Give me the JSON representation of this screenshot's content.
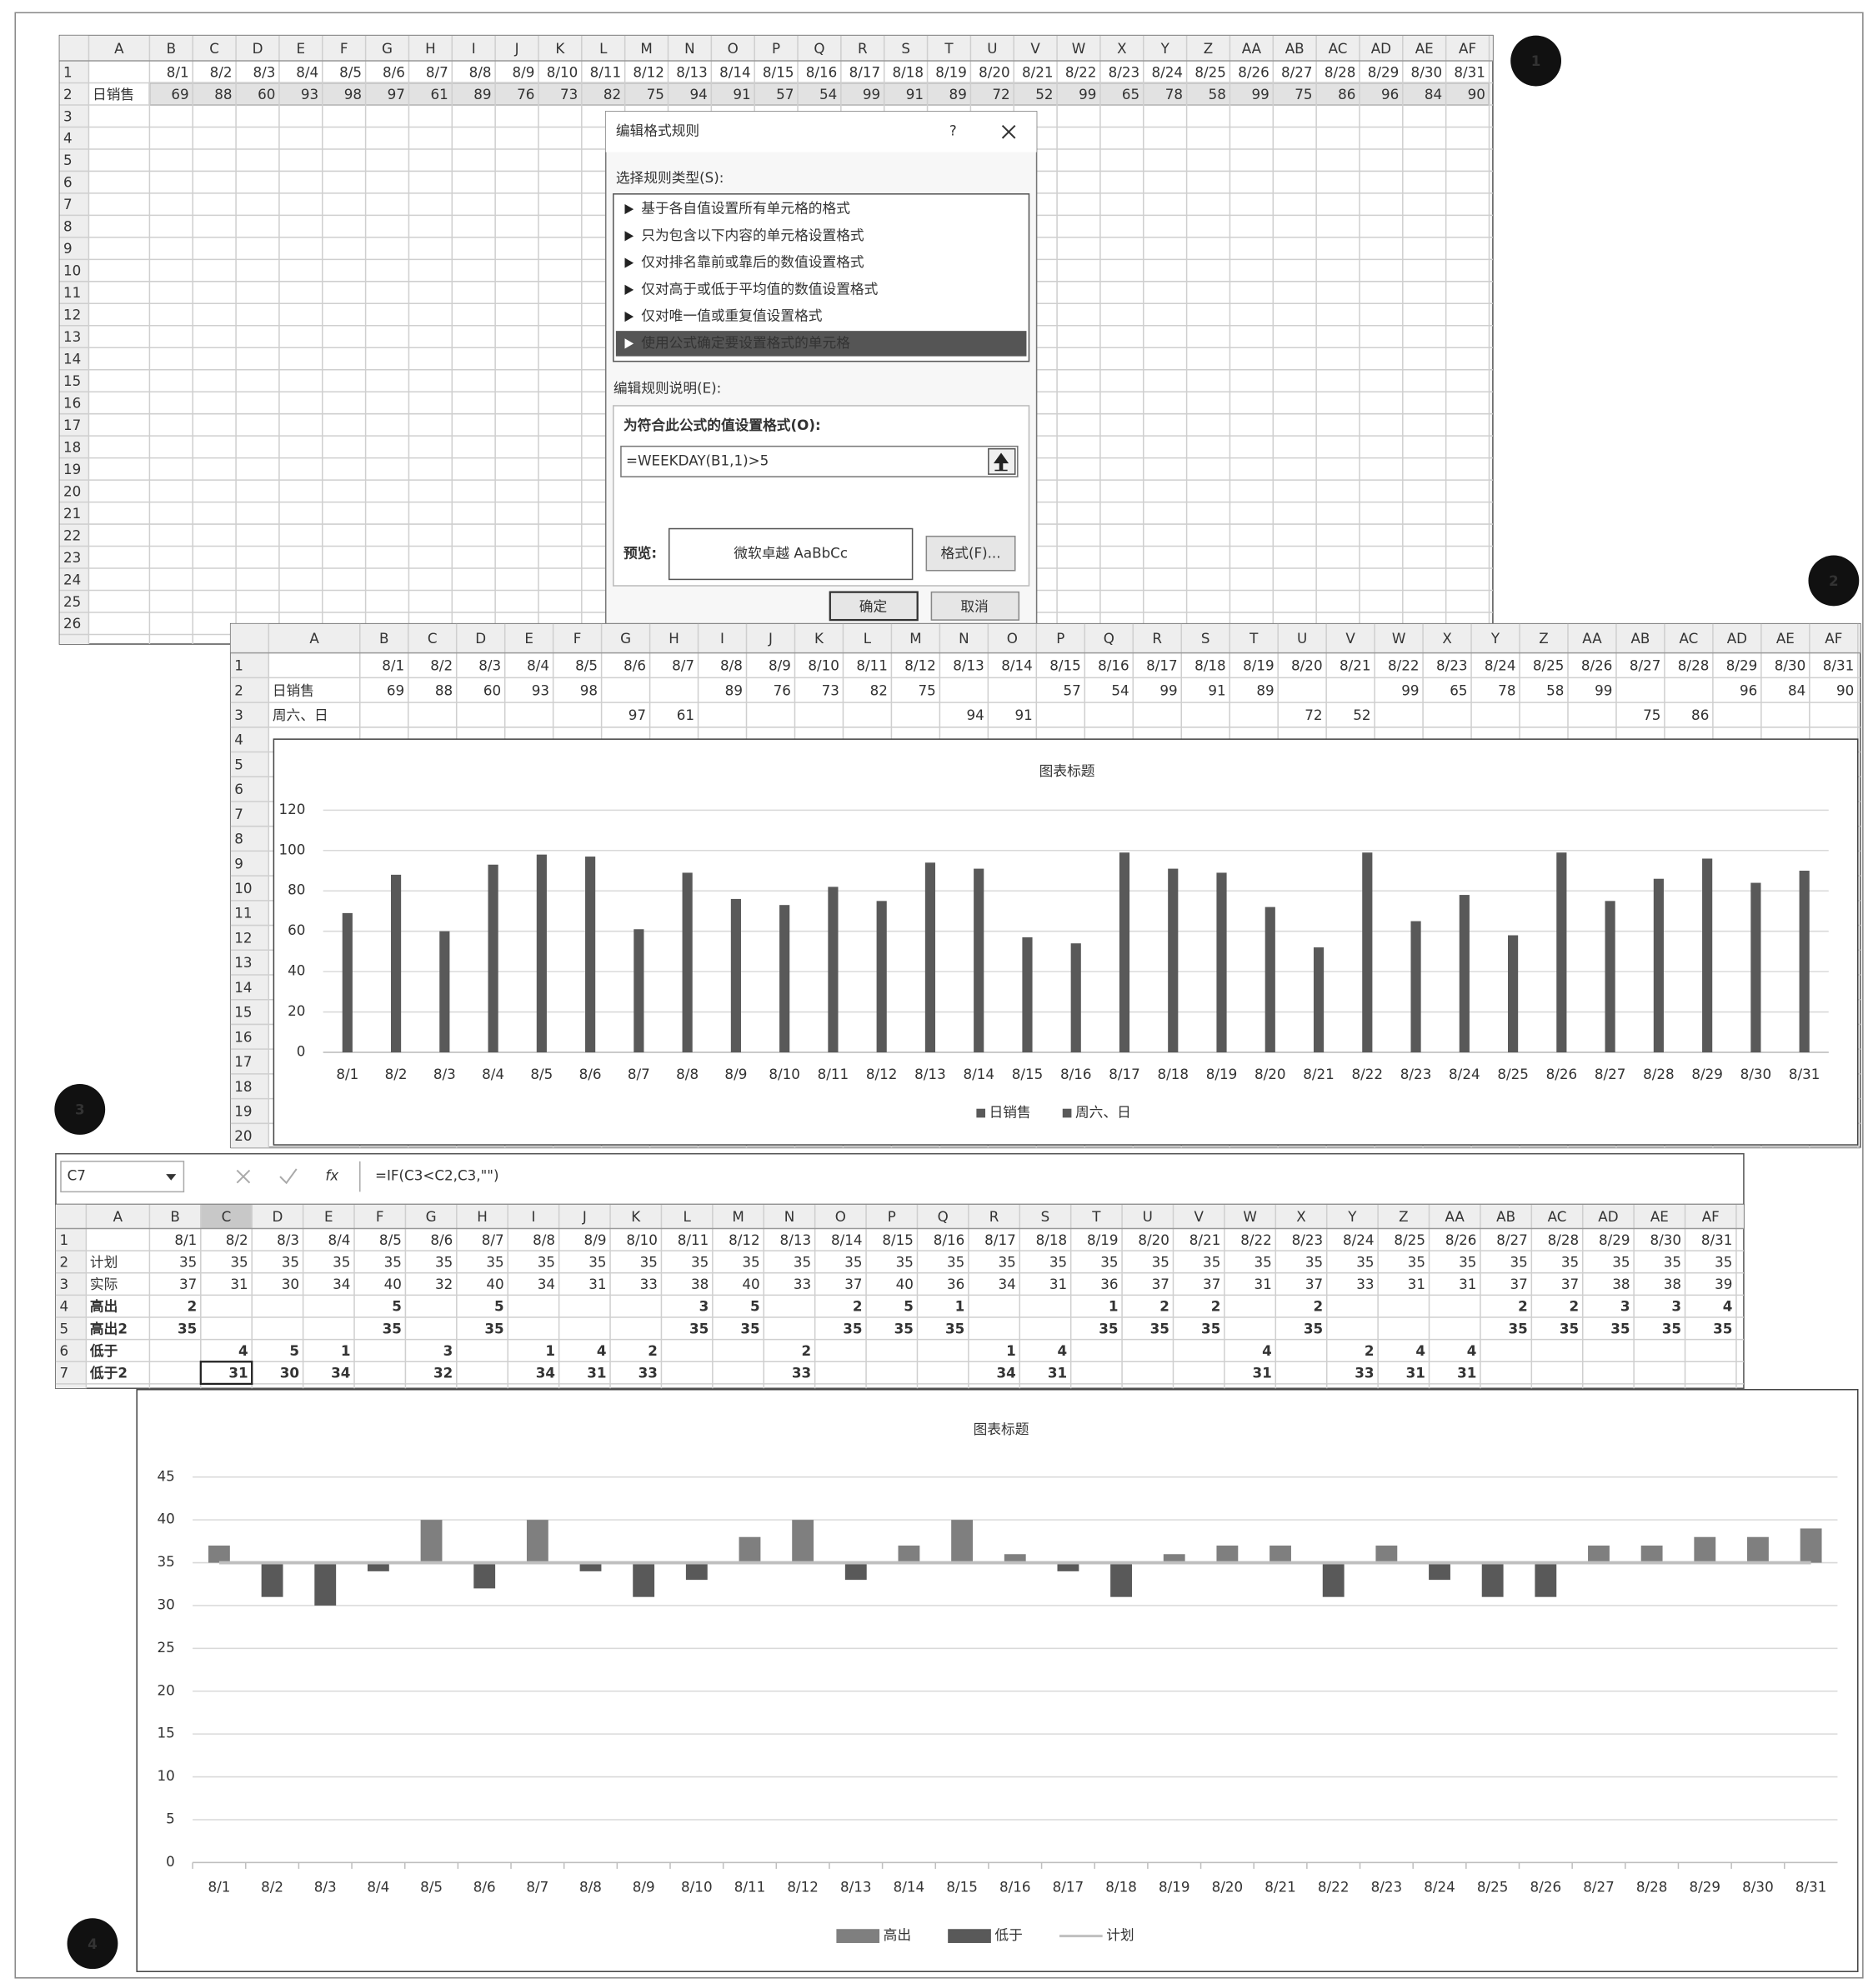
{
  "badges": [
    "1",
    "2",
    "3",
    "4"
  ],
  "columns": [
    "A",
    "B",
    "C",
    "D",
    "E",
    "F",
    "G",
    "H",
    "I",
    "J",
    "K",
    "L",
    "M",
    "N",
    "O",
    "P",
    "Q",
    "R",
    "S",
    "T",
    "U",
    "V",
    "W",
    "X",
    "Y",
    "Z",
    "AA",
    "AB",
    "AC",
    "AD",
    "AE",
    "AF"
  ],
  "sheet1": {
    "row_numbers": [
      1,
      2,
      3,
      4,
      5,
      6,
      7,
      8,
      9,
      10,
      11,
      12,
      13,
      14,
      15,
      16,
      17,
      18,
      19,
      20,
      21,
      22,
      23,
      24,
      25,
      26
    ],
    "sales": [
      69,
      88,
      60,
      93,
      98,
      97,
      61,
      89,
      76,
      73,
      82,
      75,
      94,
      91,
      57,
      54,
      99,
      91,
      89,
      72,
      52,
      99,
      65,
      78,
      58,
      99,
      75,
      86,
      96,
      84,
      90
    ]
  },
  "dialog": {
    "title": "编辑格式规则",
    "help": "?",
    "rule_type_label": "选择规则类型(S):",
    "rule_types": [
      "基于各自值设置所有单元格的格式",
      "只为包含以下内容的单元格设置格式",
      "仅对排名靠前或靠后的数值设置格式",
      "仅对高于或低于平均值的数值设置格式",
      "仅对唯一值或重复值设置格式",
      "使用公式确定要设置格式的单元格"
    ],
    "edit_label": "编辑规则说明(E):",
    "formula_label": "为符合此公式的值设置格式(O):",
    "formula": "=WEEKDAY(B1,1)>5",
    "preview_label": "预览:",
    "preview_text": "微软卓越 AaBbCc",
    "format_button": "格式(F)...",
    "ok": "确定",
    "cancel": "取消"
  },
  "sheet2": {
    "row_numbers": [
      1,
      2,
      3,
      4,
      5,
      6,
      7,
      8,
      9,
      10,
      11,
      12,
      13,
      14,
      15,
      16,
      17,
      18,
      19,
      20
    ]
  },
  "formula_bar": {
    "name_box": "C7",
    "fx": "fx",
    "formula": "=IF(C3<C2,C3,\"\")"
  },
  "sheet3": {
    "row_numbers": [
      1,
      2,
      3,
      4,
      5,
      6,
      7
    ],
    "actual_label": "实际",
    "above2_label": "高出2",
    "below2_label": "低于2",
    "actual": [
      37,
      31,
      30,
      34,
      40,
      32,
      40,
      34,
      31,
      33,
      38,
      40,
      33,
      37,
      40,
      36,
      34,
      31,
      36,
      37,
      37,
      31,
      37,
      33,
      31,
      31,
      37,
      37,
      38,
      38,
      39
    ],
    "above2": [
      35,
      null,
      null,
      null,
      35,
      null,
      35,
      null,
      null,
      null,
      35,
      35,
      null,
      35,
      35,
      35,
      null,
      null,
      35,
      35,
      35,
      null,
      35,
      null,
      null,
      null,
      35,
      35,
      35,
      35,
      35
    ],
    "below2": [
      null,
      31,
      30,
      34,
      null,
      32,
      null,
      34,
      31,
      33,
      null,
      null,
      33,
      null,
      null,
      null,
      34,
      31,
      null,
      null,
      null,
      31,
      null,
      33,
      31,
      31,
      null,
      null,
      null,
      null,
      null
    ]
  },
  "chart_data": [
    {
      "type": "bar",
      "title": "图表标题",
      "categories": [
        "8/1",
        "8/2",
        "8/3",
        "8/4",
        "8/5",
        "8/6",
        "8/7",
        "8/8",
        "8/9",
        "8/10",
        "8/11",
        "8/12",
        "8/13",
        "8/14",
        "8/15",
        "8/16",
        "8/17",
        "8/18",
        "8/19",
        "8/20",
        "8/21",
        "8/22",
        "8/23",
        "8/24",
        "8/25",
        "8/26",
        "8/27",
        "8/28",
        "8/29",
        "8/30",
        "8/31"
      ],
      "series": [
        {
          "name": "日销售",
          "color": "#595959",
          "values": [
            69,
            88,
            60,
            93,
            98,
            null,
            null,
            89,
            76,
            73,
            82,
            75,
            null,
            null,
            57,
            54,
            99,
            91,
            89,
            null,
            null,
            99,
            65,
            78,
            58,
            99,
            null,
            null,
            96,
            84,
            90
          ]
        },
        {
          "name": "周六、日",
          "color": "#595959",
          "values": [
            null,
            null,
            null,
            null,
            null,
            97,
            61,
            null,
            null,
            null,
            null,
            null,
            94,
            91,
            null,
            null,
            null,
            null,
            null,
            72,
            52,
            null,
            null,
            null,
            null,
            null,
            75,
            86,
            null,
            null,
            null
          ]
        }
      ],
      "ylim": [
        0,
        120
      ],
      "yticks": [
        0,
        20,
        40,
        60,
        80,
        100,
        120
      ],
      "grid": true,
      "legend": "bottom"
    },
    {
      "type": "floating",
      "title": "图表标题",
      "categories": [
        "8/1",
        "8/2",
        "8/3",
        "8/4",
        "8/5",
        "8/6",
        "8/7",
        "8/8",
        "8/9",
        "8/10",
        "8/11",
        "8/12",
        "8/13",
        "8/14",
        "8/15",
        "8/16",
        "8/17",
        "8/18",
        "8/19",
        "8/20",
        "8/21",
        "8/22",
        "8/23",
        "8/24",
        "8/25",
        "8/26",
        "8/27",
        "8/28",
        "8/29",
        "8/30",
        "8/31"
      ],
      "series": [
        {
          "name": "高出",
          "color": "#7f7f7f",
          "values": [
            2,
            null,
            null,
            null,
            5,
            null,
            5,
            null,
            null,
            null,
            3,
            5,
            null,
            2,
            5,
            1,
            null,
            null,
            1,
            2,
            2,
            null,
            2,
            null,
            null,
            null,
            2,
            2,
            3,
            3,
            4
          ]
        },
        {
          "name": "低于",
          "color": "#595959",
          "values": [
            null,
            4,
            5,
            1,
            null,
            3,
            null,
            1,
            4,
            2,
            null,
            null,
            2,
            null,
            null,
            null,
            1,
            4,
            null,
            null,
            null,
            4,
            null,
            2,
            4,
            4,
            null,
            null,
            null,
            null,
            null
          ]
        },
        {
          "name": "计划",
          "color": "#bfbfbf",
          "type": "line",
          "values": [
            35,
            35,
            35,
            35,
            35,
            35,
            35,
            35,
            35,
            35,
            35,
            35,
            35,
            35,
            35,
            35,
            35,
            35,
            35,
            35,
            35,
            35,
            35,
            35,
            35,
            35,
            35,
            35,
            35,
            35,
            35
          ]
        }
      ],
      "ylim": [
        0,
        45
      ],
      "yticks": [
        0,
        5,
        10,
        15,
        20,
        25,
        30,
        35,
        40,
        45
      ],
      "grid": true,
      "legend": "bottom"
    }
  ]
}
